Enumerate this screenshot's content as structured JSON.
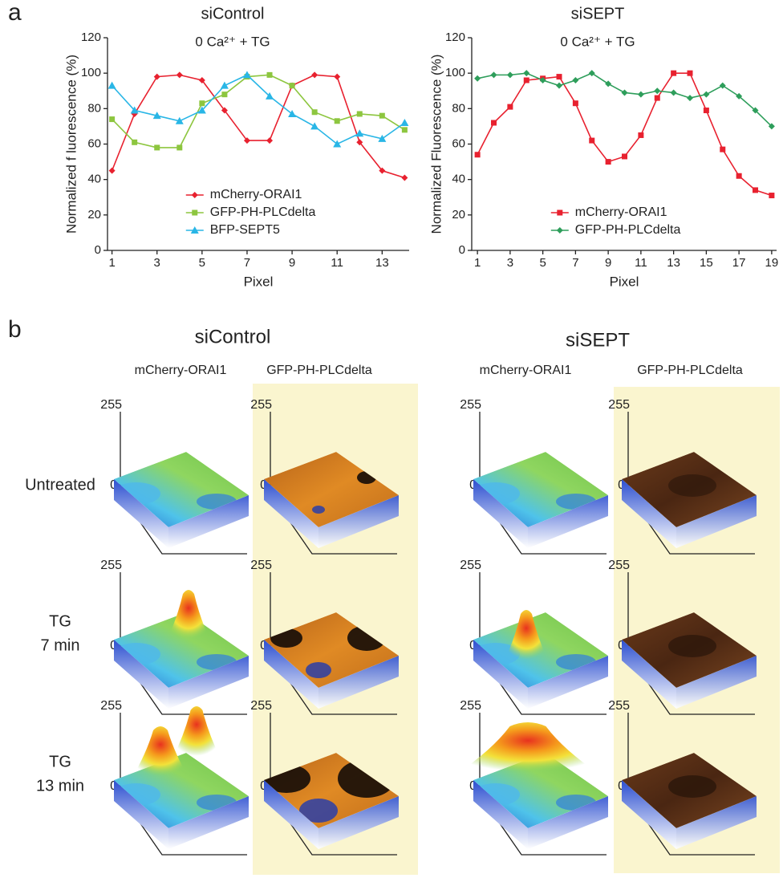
{
  "panel_labels": [
    "a",
    "b"
  ],
  "chart_data": [
    {
      "type": "line",
      "title": "siControl",
      "subtitle": "0 Ca²⁺ + TG",
      "x_label": "Pixel",
      "y_label": "Normalized f luorescence (%)",
      "x": [
        1,
        2,
        3,
        4,
        5,
        6,
        7,
        8,
        9,
        10,
        11,
        12,
        13,
        14
      ],
      "xlim": [
        0.8,
        14.2
      ],
      "xticks": [
        1,
        3,
        5,
        7,
        9,
        11,
        13
      ],
      "ylim": [
        0,
        120
      ],
      "yticks": [
        0,
        20,
        40,
        60,
        80,
        100,
        120
      ],
      "legend": "lower center",
      "series": [
        {
          "name": "mCherry-ORAI1",
          "color": "#e8212f",
          "marker": "diamond",
          "values": [
            45,
            77,
            98,
            99,
            96,
            79,
            62,
            62,
            93,
            99,
            98,
            61,
            45,
            41
          ]
        },
        {
          "name": "GFP-PH-PLCdelta",
          "color": "#8dc63f",
          "marker": "square",
          "values": [
            74,
            61,
            58,
            58,
            83,
            88,
            98,
            99,
            93,
            78,
            73,
            77,
            76,
            68
          ]
        },
        {
          "name": "BFP-SEPT5",
          "color": "#29b6e6",
          "marker": "triangle",
          "values": [
            93,
            79,
            76,
            73,
            79,
            93,
            99,
            87,
            77,
            70,
            60,
            66,
            63,
            72
          ]
        }
      ]
    },
    {
      "type": "line",
      "title": "siSEPT",
      "subtitle": "0 Ca²⁺ + TG",
      "x_label": "Pixel",
      "y_label": "Normalized Fluorescence (%)",
      "x": [
        1,
        2,
        3,
        4,
        5,
        6,
        7,
        8,
        9,
        10,
        11,
        12,
        13,
        14,
        15,
        16,
        17,
        18,
        19
      ],
      "xlim": [
        0.65,
        19.3
      ],
      "xticks": [
        1,
        3,
        5,
        7,
        9,
        11,
        13,
        15,
        17,
        19
      ],
      "ylim": [
        0,
        120
      ],
      "yticks": [
        0,
        20,
        40,
        60,
        80,
        100,
        120
      ],
      "legend": "lower center",
      "series": [
        {
          "name": "mCherry-ORAI1",
          "color": "#e8212f",
          "marker": "square",
          "values": [
            54,
            72,
            81,
            96,
            97,
            98,
            83,
            62,
            50,
            53,
            65,
            86,
            100,
            100,
            79,
            57,
            42,
            34,
            31
          ]
        },
        {
          "name": "GFP-PH-PLCdelta",
          "color": "#2e9e5b",
          "marker": "diamond",
          "values": [
            97,
            99,
            99,
            100,
            96,
            93,
            96,
            100,
            94,
            89,
            88,
            90,
            89,
            86,
            88,
            93,
            87,
            79,
            70
          ]
        }
      ]
    }
  ],
  "panel_b": {
    "groups": [
      "siControl",
      "siSEPT"
    ],
    "columns": [
      "mCherry-ORAI1",
      "GFP-PH-PLCdelta"
    ],
    "rows": [
      [
        "Untreated"
      ],
      [
        "TG",
        "7 min"
      ],
      [
        "TG",
        "13 min"
      ]
    ],
    "z_ticks": [
      255,
      0
    ]
  }
}
